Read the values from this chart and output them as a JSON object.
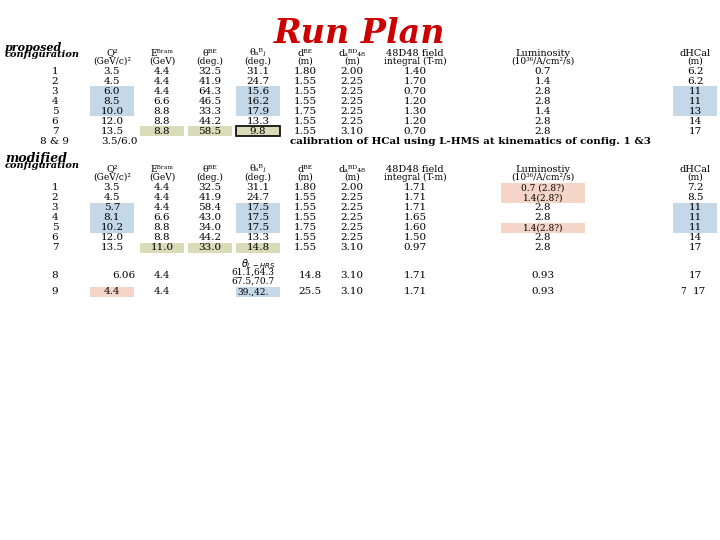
{
  "title": "Run Plan",
  "title_color": "#cc0000",
  "title_fontsize": 24,
  "proposed_rows": [
    [
      1,
      "3.5",
      "4.4",
      "32.5",
      "31.1",
      "1.80",
      "2.00",
      "1.40",
      "0.7",
      "6.2"
    ],
    [
      2,
      "4.5",
      "4.4",
      "41.9",
      "24.7",
      "1.55",
      "2.25",
      "1.70",
      "1.4",
      "6.2"
    ],
    [
      3,
      "6.0",
      "4.4",
      "64.3",
      "15.6",
      "1.55",
      "2.25",
      "0.70",
      "2.8",
      "11"
    ],
    [
      4,
      "8.5",
      "6.6",
      "46.5",
      "16.2",
      "1.55",
      "2.25",
      "1.20",
      "2.8",
      "11"
    ],
    [
      5,
      "10.0",
      "8.8",
      "33.3",
      "17.9",
      "1.75",
      "2.25",
      "1.30",
      "1.4",
      "13"
    ],
    [
      6,
      "12.0",
      "8.8",
      "44.2",
      "13.3",
      "1.55",
      "2.25",
      "1.20",
      "2.8",
      "14"
    ],
    [
      7,
      "13.5",
      "8.8",
      "58.5",
      "9.8",
      "1.55",
      "3.10",
      "0.70",
      "2.8",
      "17"
    ]
  ],
  "modified_rows": [
    [
      1,
      "3.5",
      "4.4",
      "32.5",
      "31.1",
      "1.80",
      "2.00",
      "1.71",
      "0.7 (2.8?)",
      "7.2"
    ],
    [
      2,
      "4.5",
      "4.4",
      "41.9",
      "24.7",
      "1.55",
      "2.25",
      "1.71",
      "1.4(2.8?)",
      "8.5"
    ],
    [
      3,
      "5.7",
      "4.4",
      "58.4",
      "17.5",
      "1.55",
      "2.25",
      "1.71",
      "2.8",
      "11"
    ],
    [
      4,
      "8.1",
      "6.6",
      "43.0",
      "17.5",
      "1.55",
      "2.25",
      "1.65",
      "2.8",
      "11"
    ],
    [
      5,
      "10.2",
      "8.8",
      "34.0",
      "17.5",
      "1.75",
      "2.25",
      "1.60",
      "1.4(2.8?)",
      "11"
    ],
    [
      6,
      "12.0",
      "8.8",
      "44.2",
      "13.3",
      "1.55",
      "2.25",
      "1.50",
      "2.8",
      "14"
    ],
    [
      7,
      "13.5",
      "11.0",
      "33.0",
      "14.8",
      "1.55",
      "3.10",
      "0.97",
      "2.8",
      "17"
    ]
  ],
  "blue_highlight": "#c5d8e8",
  "green_highlight": "#d8dcb8",
  "pink_highlight": "#f5d5c8"
}
